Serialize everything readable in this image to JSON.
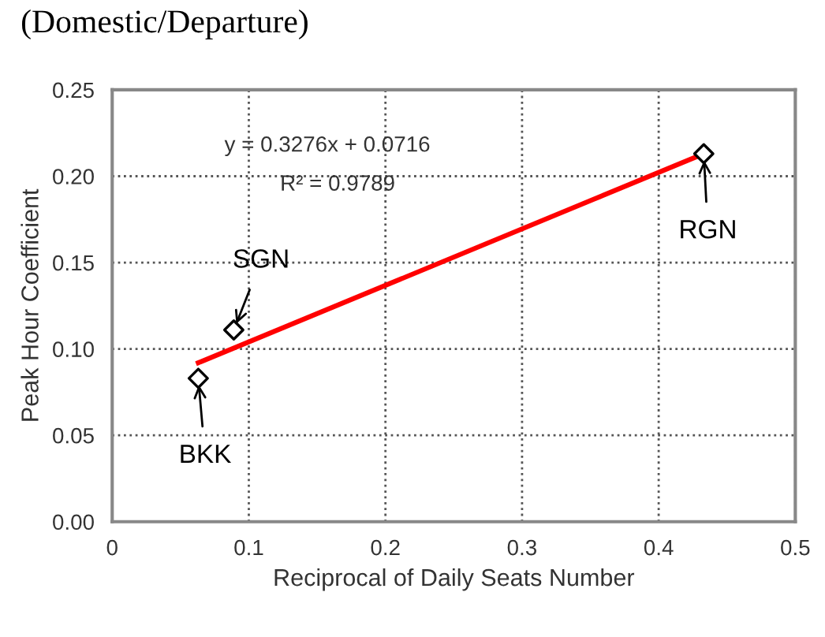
{
  "chart_data": {
    "type": "scatter",
    "title": "(Domestic/Departure)",
    "xlabel": "Reciprocal of Daily Seats Number",
    "ylabel": "Peak Hour Coefficient",
    "x": [
      0.063,
      0.089,
      0.433
    ],
    "series": [
      {
        "color": "#000000",
        "marker": "diamond",
        "values": [
          0.083,
          0.111,
          0.213
        ]
      },
      {
        "type": "line",
        "color": "#ff0000",
        "marker": "none",
        "x": [
          0.063,
          0.433
        ],
        "values": [
          0.092,
          0.213
        ]
      }
    ],
    "annotations": [
      {
        "text": "BKK",
        "x": 0.063,
        "y": 0.083
      },
      {
        "text": "SGN",
        "x": 0.089,
        "y": 0.111
      },
      {
        "text": "RGN",
        "x": 0.433,
        "y": 0.213
      },
      "y = 0.3276x + 0.0716",
      "R² = 0.9789"
    ],
    "xlim": [
      0,
      0.5
    ],
    "xticks": [
      0,
      0.1,
      0.2,
      0.3,
      0.4,
      0.5
    ],
    "ylim": [
      0,
      0.25
    ],
    "yticks": [
      {
        "value": 0,
        "label": "0.00"
      },
      {
        "value": 0.05,
        "label": "0.05"
      },
      {
        "value": 0.1,
        "label": "0.10"
      },
      {
        "value": 0.15,
        "label": "0.15"
      },
      {
        "value": 0.2,
        "label": "0.20"
      },
      {
        "value": 0.25,
        "label": "0.25"
      }
    ],
    "grid": true
  }
}
